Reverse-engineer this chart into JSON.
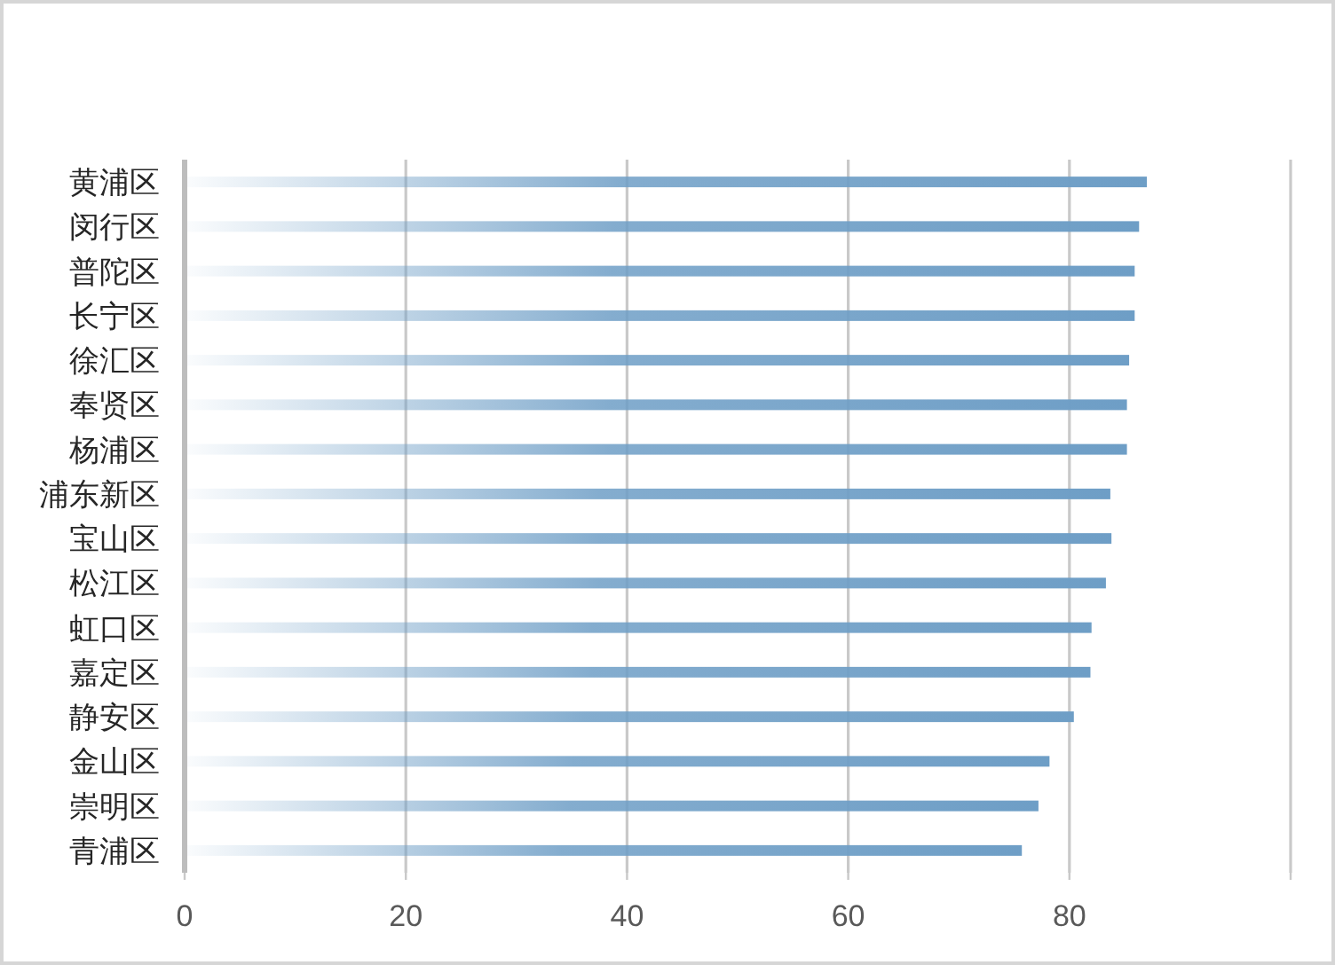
{
  "chart_data": {
    "type": "bar",
    "orientation": "horizontal",
    "categories": [
      "黄浦区",
      "闵行区",
      "普陀区",
      "长宁区",
      "徐汇区",
      "奉贤区",
      "杨浦区",
      "浦东新区",
      "宝山区",
      "松江区",
      "虹口区",
      "嘉定区",
      "静安区",
      "金山区",
      "崇明区",
      "青浦区"
    ],
    "values": [
      87.0,
      86.3,
      85.9,
      85.9,
      85.4,
      85.2,
      85.2,
      83.7,
      83.8,
      83.3,
      82.0,
      81.9,
      80.4,
      78.2,
      77.2,
      75.7
    ],
    "color": "#6e9ec6",
    "xlim": [
      0,
      100
    ],
    "xticks": [
      0,
      20,
      40,
      60,
      80,
      {
        "value": 100,
        "label": null
      }
    ],
    "grid": "x"
  }
}
